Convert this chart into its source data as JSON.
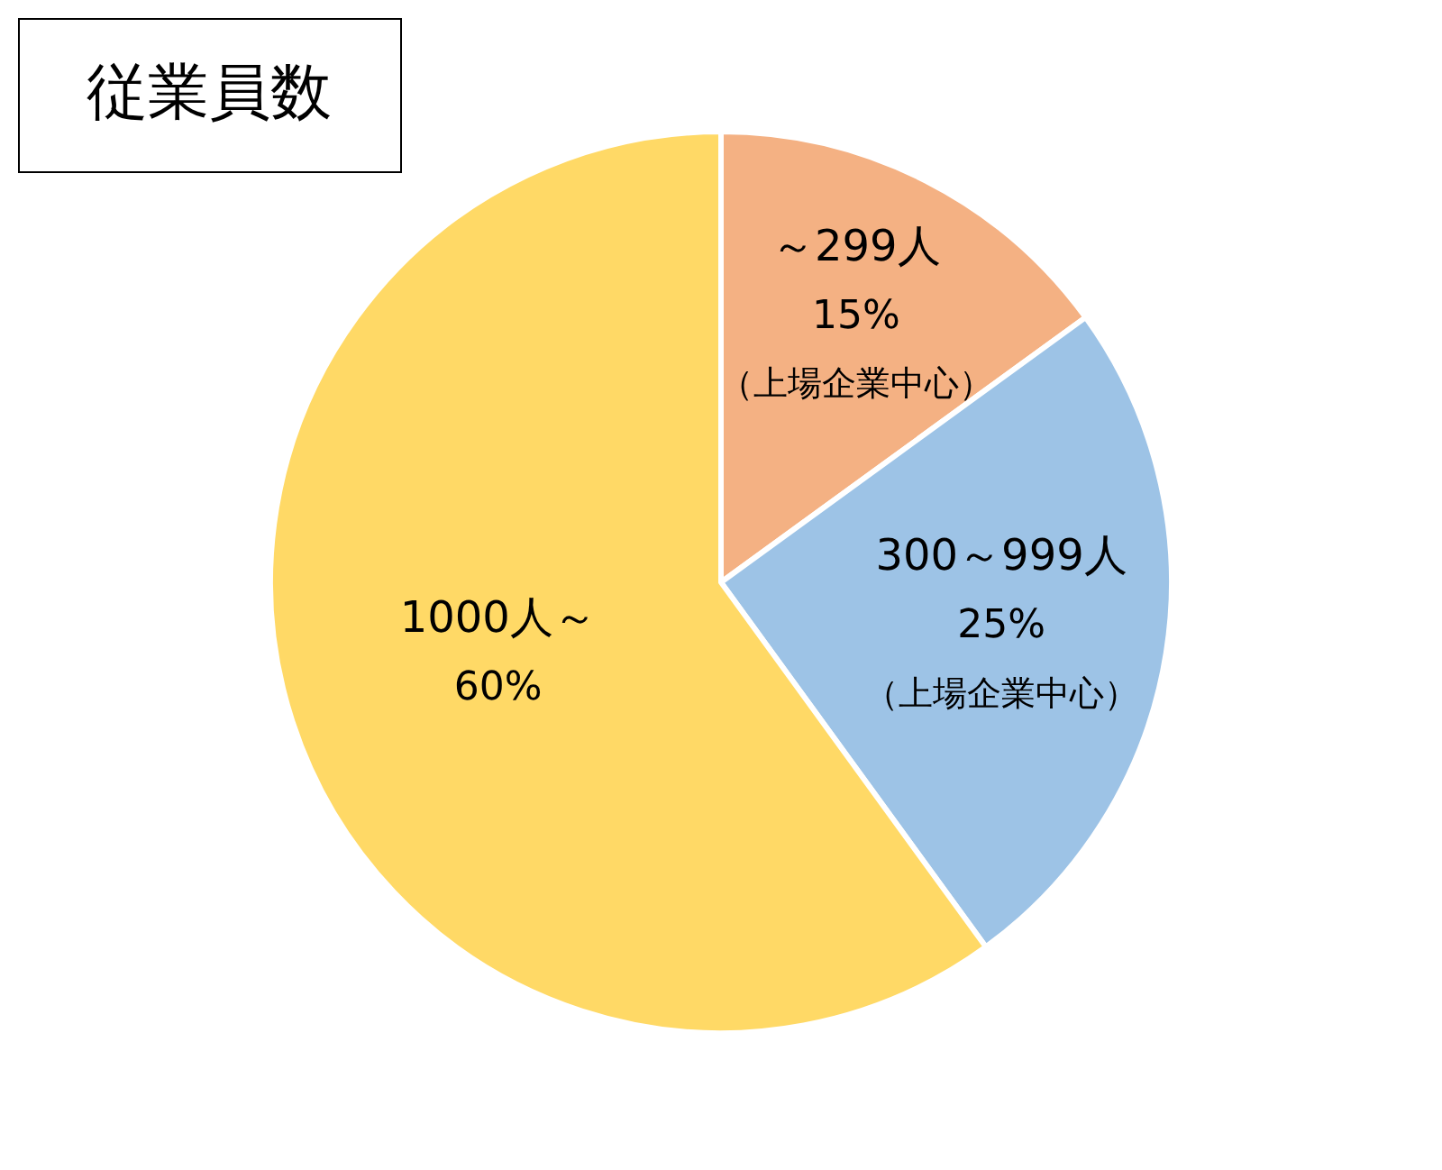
{
  "chart_data": {
    "type": "pie",
    "title": "従業員数",
    "categories": [
      "～299人",
      "300～999人",
      "1000人～"
    ],
    "values": [
      15,
      25,
      60
    ],
    "value_labels": [
      "15%",
      "25%",
      "60%"
    ],
    "colors": [
      "#f4b183",
      "#9dc3e6",
      "#ffd966"
    ],
    "annotations": [
      {
        "text": "（上場企業中心）",
        "x": "～299人"
      },
      {
        "text": "（上場企業中心）",
        "x": "300～999人"
      }
    ],
    "legend": false
  }
}
